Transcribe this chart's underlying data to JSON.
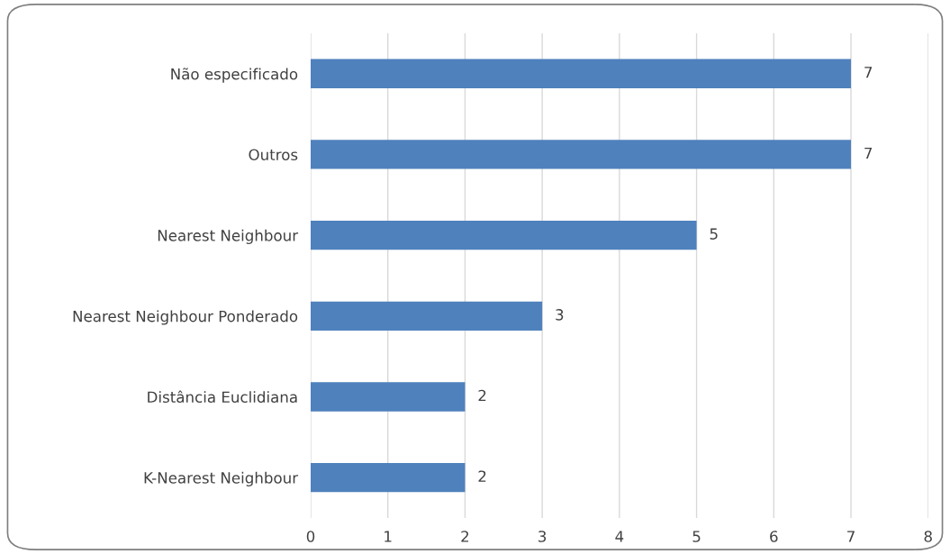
{
  "chart_data": {
    "type": "bar",
    "orientation": "horizontal",
    "categories": [
      "Não especificado",
      "Outros",
      "Nearest Neighbour",
      "Nearest Neighbour Ponderado",
      "Distância Euclidiana",
      "K-Nearest Neighbour"
    ],
    "values": [
      7,
      7,
      5,
      3,
      2,
      2
    ],
    "color": "#4f81bd",
    "xlim": [
      0,
      8
    ],
    "xticks": [
      0,
      1,
      2,
      3,
      4,
      5,
      6,
      7,
      8
    ],
    "grid": "x",
    "data_labels": true
  }
}
